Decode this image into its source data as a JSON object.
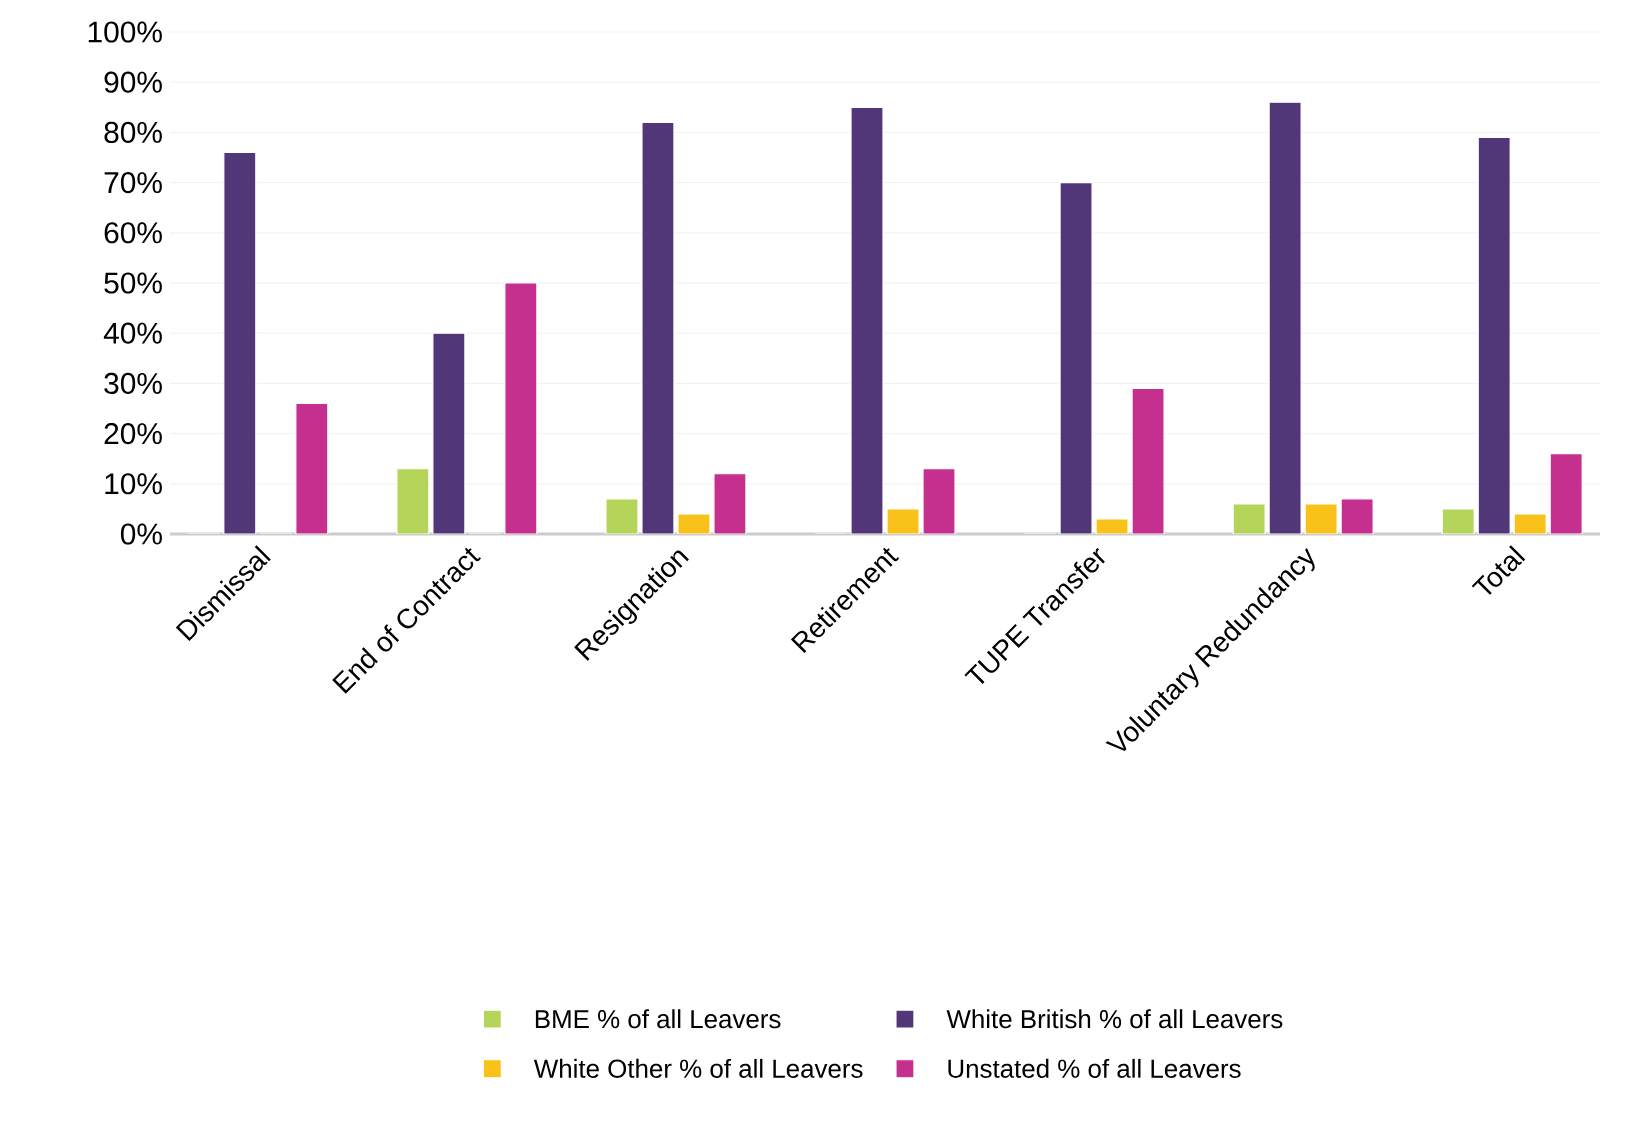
{
  "chart_data": {
    "type": "bar",
    "categories": [
      "Dismissal",
      "End of Contract",
      "Resignation",
      "Retirement",
      "TUPE Transfer",
      "Voluntary Redundancy",
      "Total"
    ],
    "series": [
      {
        "name": "BME % of all Leavers",
        "color": "#b5d55a",
        "values": [
          0,
          13,
          7,
          0,
          0,
          6,
          5
        ]
      },
      {
        "name": "White British % of all Leavers",
        "color": "#523778",
        "values": [
          76,
          40,
          82,
          85,
          70,
          86,
          79
        ]
      },
      {
        "name": "White Other % of all Leavers",
        "color": "#f9c21a",
        "values": [
          0,
          0,
          4,
          5,
          3,
          6,
          4
        ]
      },
      {
        "name": "Unstated % of all Leavers",
        "color": "#c5308f",
        "values": [
          26,
          50,
          12,
          13,
          29,
          7,
          16
        ]
      }
    ],
    "ylim": [
      0,
      100
    ],
    "yticks": [
      {
        "value": 0,
        "label": "0%"
      },
      {
        "value": 10,
        "label": "10%"
      },
      {
        "value": 20,
        "label": "20%"
      },
      {
        "value": 30,
        "label": "30%"
      },
      {
        "value": 40,
        "label": "40%"
      },
      {
        "value": 50,
        "label": "50%"
      },
      {
        "value": 60,
        "label": "60%"
      },
      {
        "value": 70,
        "label": "70%"
      },
      {
        "value": 80,
        "label": "80%"
      },
      {
        "value": 90,
        "label": "90%"
      },
      {
        "value": 100,
        "label": "100%"
      }
    ],
    "grid": "y",
    "legend": "bottom"
  }
}
